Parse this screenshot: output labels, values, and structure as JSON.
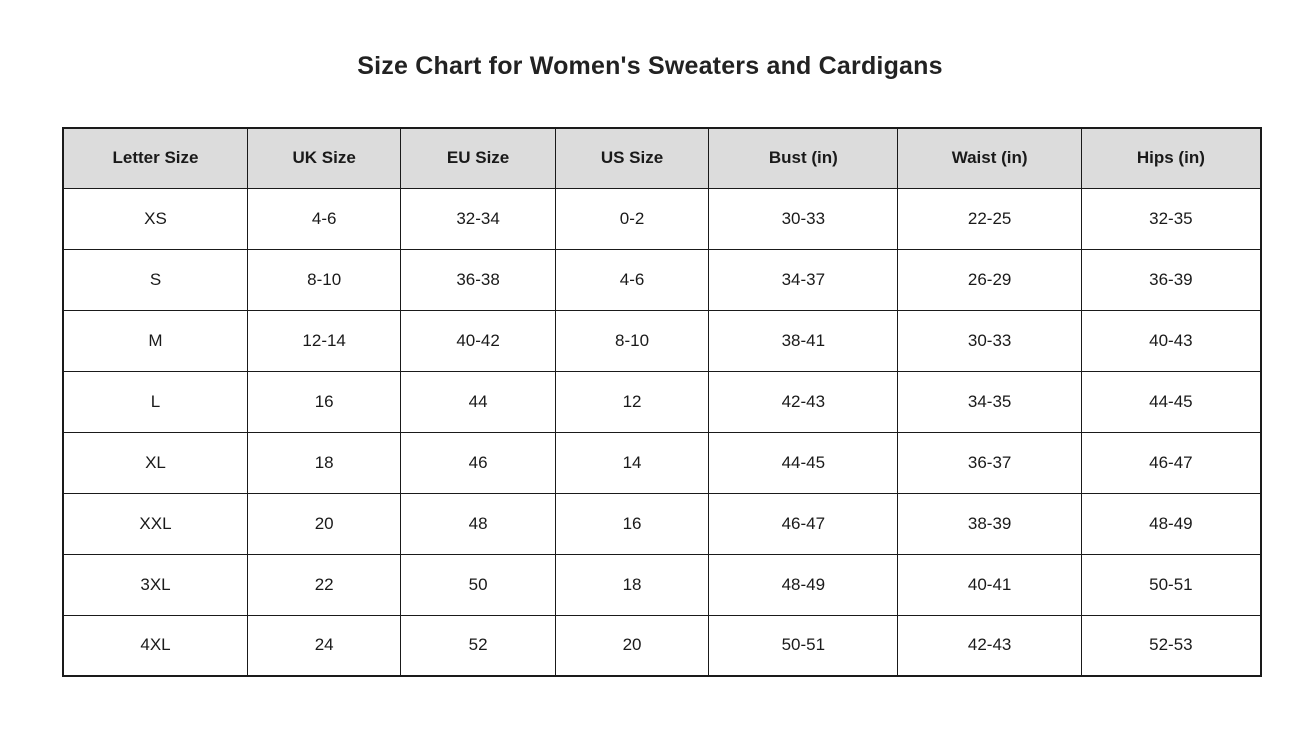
{
  "chart_data": {
    "type": "table",
    "title": "Size Chart for Women's Sweaters and Cardigans",
    "columns": [
      "Letter Size",
      "UK Size",
      "EU Size",
      "US Size",
      "Bust (in)",
      "Waist (in)",
      "Hips (in)"
    ],
    "rows": [
      [
        "XS",
        "4-6",
        "32-34",
        "0-2",
        "30-33",
        "22-25",
        "32-35"
      ],
      [
        "S",
        "8-10",
        "36-38",
        "4-6",
        "34-37",
        "26-29",
        "36-39"
      ],
      [
        "M",
        "12-14",
        "40-42",
        "8-10",
        "38-41",
        "30-33",
        "40-43"
      ],
      [
        "L",
        "16",
        "44",
        "12",
        "42-43",
        "34-35",
        "44-45"
      ],
      [
        "XL",
        "18",
        "46",
        "14",
        "44-45",
        "36-37",
        "46-47"
      ],
      [
        "XXL",
        "20",
        "48",
        "16",
        "46-47",
        "38-39",
        "48-49"
      ],
      [
        "3XL",
        "22",
        "50",
        "18",
        "48-49",
        "40-41",
        "50-51"
      ],
      [
        "4XL",
        "24",
        "52",
        "20",
        "50-51",
        "42-43",
        "52-53"
      ]
    ],
    "layout": {
      "legend": "none",
      "grid": "full-borders",
      "header_background": "#dcdcdc",
      "border_color": "#1a1a1a",
      "page_background": "#ffffff"
    }
  }
}
